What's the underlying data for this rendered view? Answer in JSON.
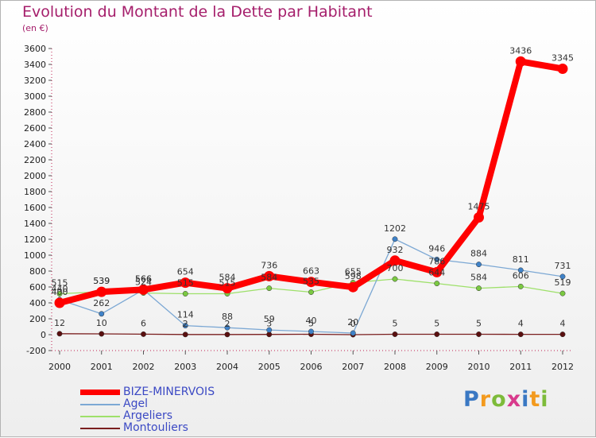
{
  "header": {
    "title": "Evolution du Montant de la Dette par Habitant",
    "subtitle": "(en €)"
  },
  "logo": {
    "text": "Proxiti"
  },
  "chart_data": {
    "type": "line",
    "title": "Evolution du Montant de la Dette par Habitant",
    "subtitle": "(en €)",
    "xlabel": "",
    "ylabel": "",
    "categories": [
      "2000",
      "2001",
      "2002",
      "2003",
      "2004",
      "2005",
      "2006",
      "2007",
      "2008",
      "2009",
      "2010",
      "2011",
      "2012"
    ],
    "ylim": [
      -200,
      3600
    ],
    "yticks": [
      -200,
      0,
      200,
      400,
      600,
      800,
      1000,
      1200,
      1400,
      1600,
      1800,
      2000,
      2200,
      2400,
      2600,
      2800,
      3000,
      3200,
      3400,
      3600
    ],
    "grid": false,
    "legend": "bottom-left",
    "series": [
      {
        "name": "Montouliers",
        "color": "#7a1e1e",
        "marker": "#5a0f0f",
        "values": [
          12,
          10,
          6,
          2,
          2,
          3,
          5,
          0,
          5,
          5,
          5,
          4,
          4
        ],
        "labels": [
          "12",
          "10",
          "6",
          "2",
          "2",
          "3",
          "5",
          "0",
          "5",
          "5",
          "5",
          "4",
          "4"
        ]
      },
      {
        "name": "Argeliers",
        "color": "#9ee06a",
        "marker": "#7bc942",
        "values": [
          515,
          539,
          524,
          515,
          515,
          584,
          535,
          655,
          700,
          644,
          584,
          606,
          519
        ],
        "labels": [
          "515",
          "539",
          "524",
          "515",
          "515",
          "584",
          "535",
          "655",
          "700",
          "644",
          "584",
          "606",
          "519"
        ]
      },
      {
        "name": "Agel",
        "color": "#7ca8d4",
        "marker": "#3f82c8",
        "values": [
          440,
          262,
          566,
          114,
          88,
          59,
          40,
          20,
          1202,
          946,
          884,
          811,
          731
        ],
        "labels": [
          "440",
          "262",
          "566",
          "114",
          "88",
          "59",
          "40",
          "20",
          "1202",
          "946",
          "884",
          "811",
          "731"
        ]
      },
      {
        "name": "BIZE-MINERVOIS",
        "color": "#ff0000",
        "marker": "#ff0000",
        "values": [
          400,
          539,
          566,
          654,
          584,
          736,
          663,
          598,
          932,
          786,
          1475,
          3436,
          3345
        ],
        "labels": [
          "400",
          "539",
          "566",
          "654",
          "584",
          "736",
          "663",
          "598",
          "932",
          "786",
          "1475",
          "3436",
          "3345"
        ]
      }
    ]
  },
  "legend": {
    "items": [
      {
        "label": "BIZE-MINERVOIS",
        "color": "#ff0000"
      },
      {
        "label": "Agel",
        "color": "#7ca8d4"
      },
      {
        "label": "Argeliers",
        "color": "#9ee06a"
      },
      {
        "label": "Montouliers",
        "color": "#7a1e1e"
      }
    ]
  }
}
